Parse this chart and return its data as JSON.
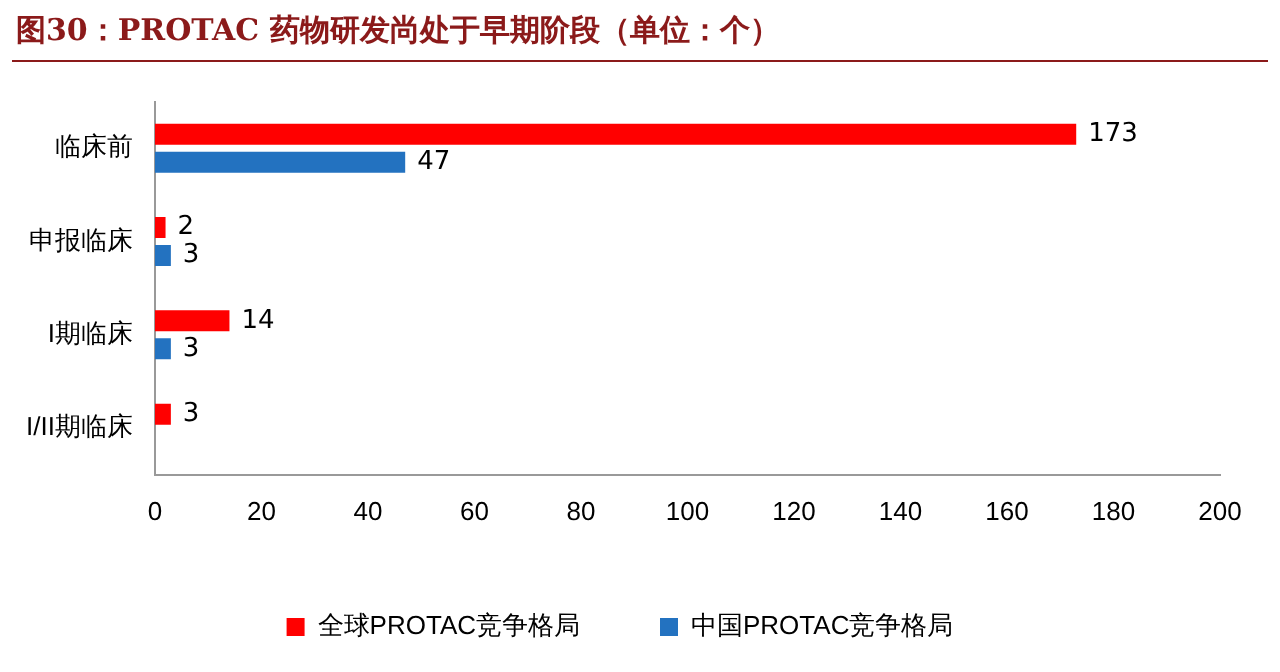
{
  "chart_data": {
    "type": "bar",
    "orientation": "horizontal",
    "title": "图30：PROTAC 药物研发尚处于早期阶段（单位：个）",
    "categories": [
      "临床前",
      "申报临床",
      "I期临床",
      "I/II期临床"
    ],
    "series": [
      {
        "name": "全球PROTAC竞争格局",
        "color": "#ff0000",
        "values": [
          173,
          2,
          14,
          3
        ]
      },
      {
        "name": "中国PROTAC竞争格局",
        "color": "#2372c0",
        "values": [
          47,
          3,
          3,
          null
        ]
      }
    ],
    "xlim": [
      0,
      200
    ],
    "xticks": [
      0,
      20,
      40,
      60,
      80,
      100,
      120,
      140,
      160,
      180,
      200
    ],
    "grid": false,
    "legend": "bottom",
    "data_labels": true
  }
}
